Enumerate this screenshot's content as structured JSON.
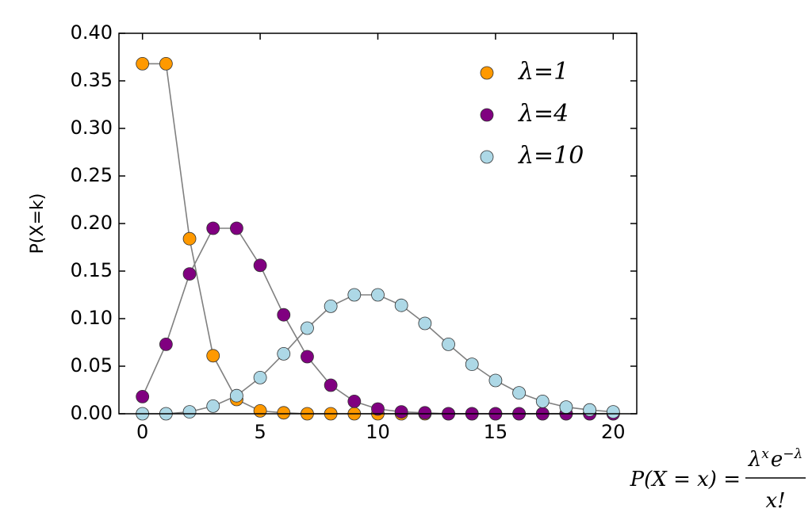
{
  "chart_data": {
    "type": "line",
    "ylabel": "P(X=k)",
    "x": [
      0,
      1,
      2,
      3,
      4,
      5,
      6,
      7,
      8,
      9,
      10,
      11,
      12,
      13,
      14,
      15,
      16,
      17,
      18,
      19,
      20
    ],
    "series": [
      {
        "name": "λ=1",
        "color": "#ff9900",
        "values": [
          0.368,
          0.368,
          0.184,
          0.061,
          0.015,
          0.003,
          0.001,
          0.0,
          0.0,
          0.0,
          0.0,
          0.0,
          0.0,
          0.0,
          0.0,
          0.0,
          0.0,
          0.0,
          0.0,
          0.0,
          0.0
        ]
      },
      {
        "name": "λ=4",
        "color": "#800080",
        "values": [
          0.018,
          0.073,
          0.147,
          0.195,
          0.195,
          0.156,
          0.104,
          0.06,
          0.03,
          0.013,
          0.005,
          0.002,
          0.001,
          0.0,
          0.0,
          0.0,
          0.0,
          0.0,
          0.0,
          0.0,
          0.0
        ]
      },
      {
        "name": "λ=10",
        "color": "#add8e6",
        "values": [
          0.0,
          0.0,
          0.002,
          0.008,
          0.019,
          0.038,
          0.063,
          0.09,
          0.113,
          0.125,
          0.125,
          0.114,
          0.095,
          0.073,
          0.052,
          0.035,
          0.022,
          0.013,
          0.007,
          0.004,
          0.002
        ]
      }
    ],
    "line_color": "#808080",
    "xlim": [
      -1,
      21
    ],
    "xticks": [
      0,
      5,
      10,
      15,
      20
    ],
    "ylim": [
      0,
      0.4
    ],
    "yticks": [
      {
        "value": 0,
        "label": "0.00"
      },
      {
        "value": 0.05,
        "label": "0.05"
      },
      {
        "value": 0.1,
        "label": "0.10"
      },
      {
        "value": 0.15,
        "label": "0.15"
      },
      {
        "value": 0.2,
        "label": "0.20"
      },
      {
        "value": 0.25,
        "label": "0.25"
      },
      {
        "value": 0.3,
        "label": "0.30"
      },
      {
        "value": 0.35,
        "label": "0.35"
      },
      {
        "value": 0.4,
        "label": "0.40"
      }
    ],
    "legend": "upper right",
    "annotation": {
      "left": "P(X = x) =",
      "numerator": [
        "λ",
        "x",
        "e",
        "−λ"
      ],
      "denominator": "x!"
    }
  }
}
